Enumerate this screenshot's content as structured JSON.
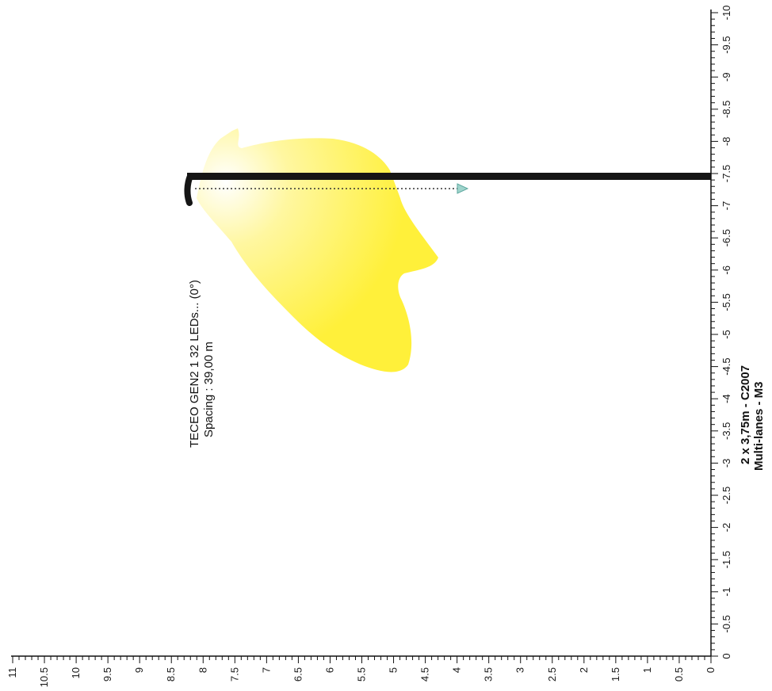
{
  "luminaire": {
    "name": "TECEO GEN2 1 32 LEDs... (0°)",
    "spacing": "Spacing : 39,00 m"
  },
  "road": {
    "profile": "2 x 3,75m - C2007",
    "lighting_class": "Multi-lanes - M3"
  },
  "axes": {
    "right_ticks": [
      "0",
      "-0.5",
      "-1",
      "-1.5",
      "-2",
      "-2.5",
      "-3",
      "-3.5",
      "-4",
      "-4.5",
      "-5",
      "-5.5",
      "-6",
      "-6.5",
      "-7",
      "-7.5",
      "-8",
      "-8.5",
      "-9",
      "-9.5",
      "-10"
    ],
    "bottom_ticks": [
      "0",
      "0.5",
      "1",
      "1.5",
      "2",
      "2.5",
      "3",
      "3.5",
      "4",
      "4.5",
      "5",
      "5.5",
      "6",
      "6.5",
      "7",
      "7.5",
      "8",
      "8.5",
      "9",
      "9.5",
      "10",
      "10.5",
      "11"
    ]
  },
  "colors": {
    "beam": "#fff24a",
    "pole": "#151515",
    "axis": "#111111",
    "arrow": "#5fa9a0"
  }
}
